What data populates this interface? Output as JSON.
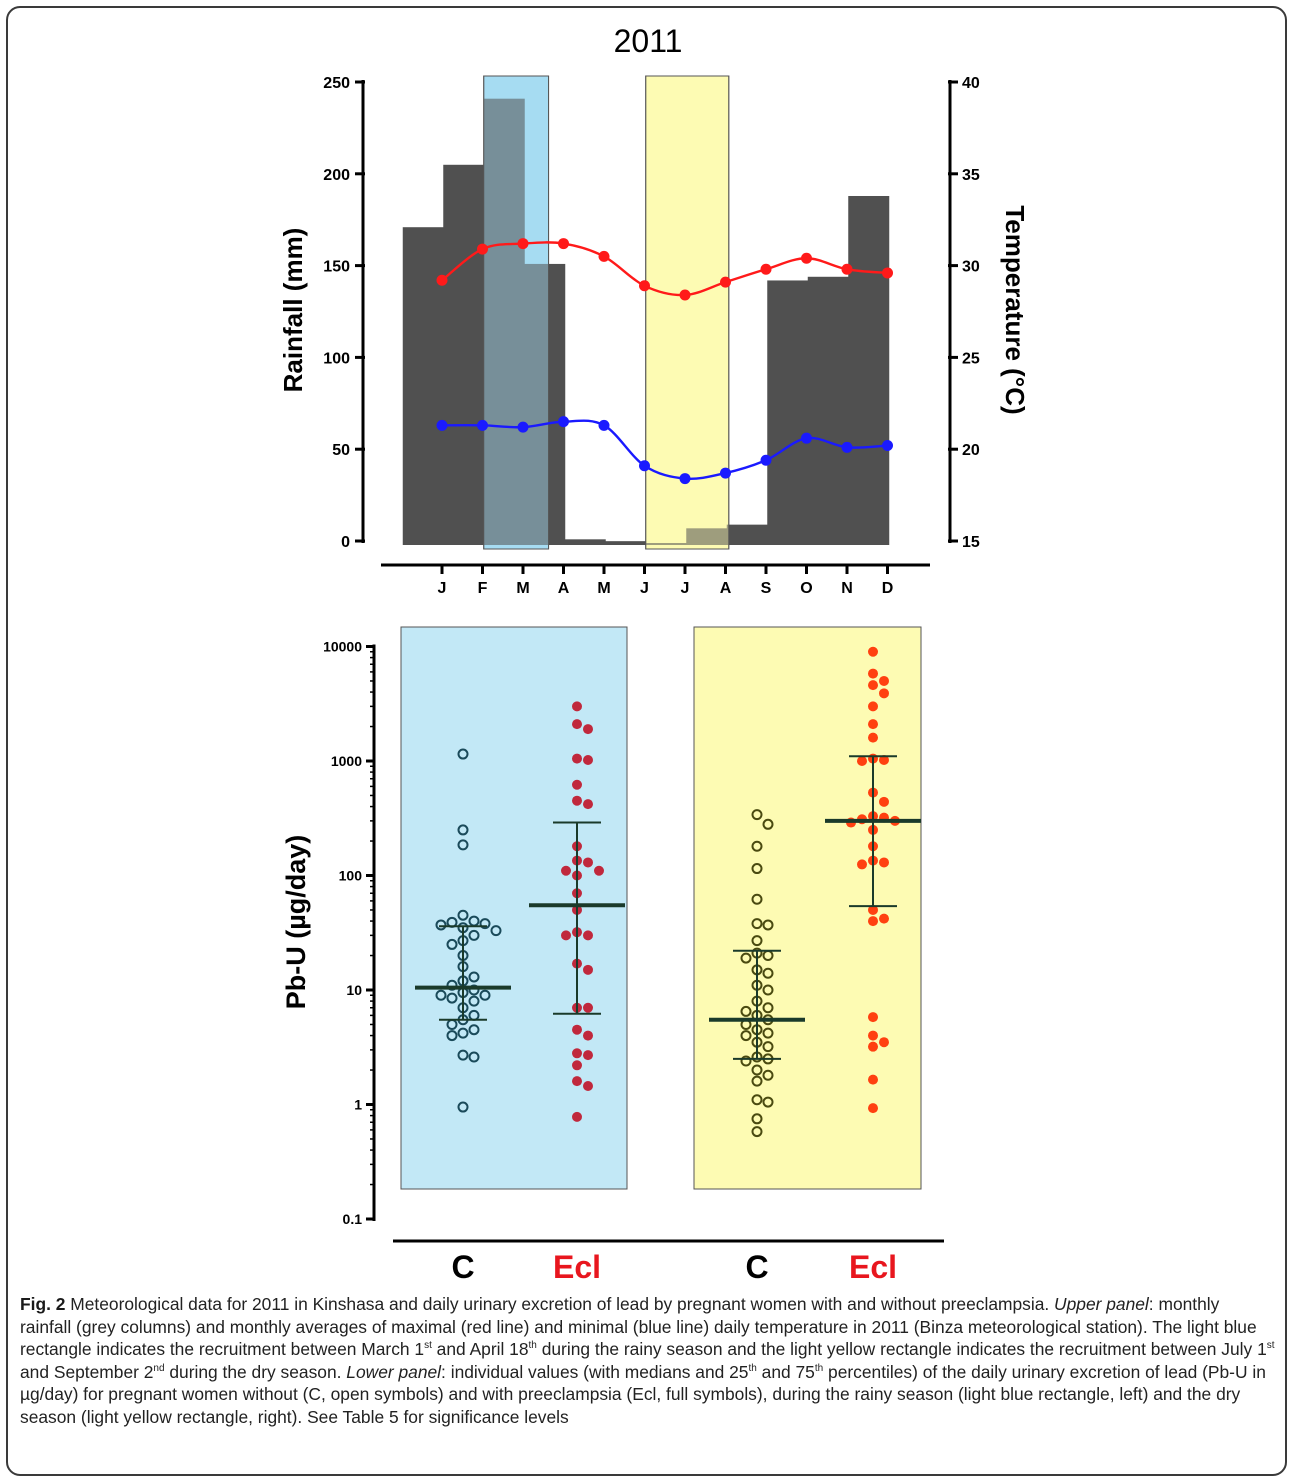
{
  "chart_data": [
    {
      "type": "bar",
      "title": "2011",
      "categories": [
        "J",
        "F",
        "M",
        "A",
        "M",
        "J",
        "J",
        "A",
        "S",
        "O",
        "N",
        "D"
      ],
      "series": [
        {
          "name": "",
          "kind": "bar",
          "axis": "left",
          "values": [
            172,
            206,
            242,
            152,
            2,
            1,
            0,
            8,
            10,
            143,
            145,
            189
          ]
        },
        {
          "name": "",
          "kind": "line",
          "axis": "right",
          "values": [
            29.2,
            30.9,
            31.2,
            31.2,
            30.5,
            28.9,
            28.4,
            29.1,
            29.8,
            30.4,
            29.8,
            29.6
          ]
        },
        {
          "name": "",
          "kind": "line",
          "axis": "right",
          "values": [
            21.3,
            21.3,
            21.2,
            21.5,
            21.3,
            19.1,
            18.4,
            18.7,
            19.4,
            20.6,
            20.1,
            20.2
          ]
        }
      ],
      "ylabel": "Rainfall (mm)",
      "ylim": [
        0,
        250
      ],
      "yticks": [
        "0",
        "50",
        "100",
        "150",
        "200",
        "250"
      ],
      "y2label": "Temperature (°C)",
      "y2lim": [
        15,
        40
      ],
      "y2ticks": [
        "15",
        "20",
        "25",
        "30",
        "35",
        "40"
      ],
      "shaded_regions": [
        {
          "from_month": 3.0,
          "to_month": 4.6,
          "color": "#a6dcf2"
        },
        {
          "from_month": 7.0,
          "to_month": 9.05,
          "color": "#fdfbb3"
        }
      ],
      "colors": {
        "bar": "#505050",
        "tmax": "#ff1a1a",
        "tmin": "#1a1aff"
      },
      "grid": false
    },
    {
      "type": "scatter",
      "ylabel": "Pb-U (µg/day)",
      "yscale": "log",
      "ylim": [
        0.1,
        10000
      ],
      "yticks": [
        "0.1",
        "1",
        "10",
        "100",
        "1000",
        "10000"
      ],
      "categories": [
        "C",
        "Ecl",
        "C",
        "Ecl"
      ],
      "groups": [
        {
          "label": "C",
          "season": "rainy",
          "filled": false,
          "color": "#1a4a5a",
          "median": 10.5,
          "q1": 5.5,
          "q3": 36,
          "values": [
            1150,
            250,
            185,
            45,
            40,
            39,
            38,
            37,
            35,
            33,
            30,
            27,
            25,
            20,
            16,
            13,
            12,
            11,
            10,
            9.5,
            9,
            9,
            8.5,
            8,
            7,
            6,
            5.5,
            5,
            4.5,
            4.2,
            4,
            2.7,
            2.6,
            0.95
          ]
        },
        {
          "label": "Ecl",
          "season": "rainy",
          "filled": true,
          "color": "#c0283c",
          "median": 55,
          "q1": 6.2,
          "q3": 290,
          "values": [
            3000,
            2100,
            1900,
            1050,
            1020,
            620,
            450,
            420,
            180,
            135,
            130,
            110,
            110,
            100,
            70,
            50,
            32,
            30,
            30,
            17,
            15,
            7,
            7,
            4.5,
            4,
            2.8,
            2.7,
            2.2,
            1.6,
            1.45,
            0.78
          ]
        },
        {
          "label": "C",
          "season": "dry",
          "filled": false,
          "color": "#4a4a10",
          "median": 5.5,
          "q1": 2.5,
          "q3": 22,
          "values": [
            340,
            280,
            180,
            115,
            62,
            38,
            37,
            27,
            21,
            20,
            19,
            15,
            14,
            11,
            10,
            8,
            7,
            6.5,
            6,
            5.5,
            5,
            4.5,
            4.2,
            4,
            3.5,
            3.2,
            2.6,
            2.5,
            2.4,
            2.0,
            1.8,
            1.6,
            1.1,
            1.05,
            0.75,
            0.58
          ]
        },
        {
          "label": "Ecl",
          "season": "dry",
          "filled": true,
          "color": "#ff4010",
          "median": 300,
          "q1": 54,
          "q3": 1100,
          "values": [
            9000,
            5800,
            5000,
            4600,
            3900,
            3000,
            2100,
            1600,
            1050,
            1020,
            1000,
            530,
            440,
            330,
            320,
            310,
            300,
            290,
            250,
            180,
            135,
            130,
            125,
            50,
            42,
            40,
            5.8,
            4,
            3.5,
            3.2,
            1.65,
            0.93
          ]
        }
      ],
      "shaded_regions": [
        {
          "groups": [
            0,
            1
          ],
          "color": "#c2e8f6"
        },
        {
          "groups": [
            2,
            3
          ],
          "color": "#fdfbb3"
        }
      ]
    }
  ],
  "caption": {
    "label": "Fig. 2",
    "text1": " Meteorological data for 2011 in Kinshasa and daily urinary excretion of lead by pregnant women with and without preeclampsia. ",
    "upper_label": "Upper panel",
    "text2": ": monthly rainfall (grey columns) and monthly averages of maximal (red line) and minimal (blue line) daily temperature in 2011 (Binza meteorological station). The light blue rectangle indicates the recruitment between March 1",
    "sup1": "st",
    "text3": " and April 18",
    "sup2": "th",
    "text4": " during the rainy season and the light yellow rectangle indicates the recruitment between July 1",
    "sup3": "st",
    "text5": " and September 2",
    "sup4": "nd",
    "text6": " during the dry season. ",
    "lower_label": "Lower panel",
    "text7": ": individual values (with medians and 25",
    "sup5": "th",
    "text8": " and 75",
    "sup6": "th",
    "text9": " percentiles) of the daily urinary excretion of lead (Pb-U in µg/day) for pregnant women without (C, open symbols) and with preeclampsia (Ecl, full symbols), during the rainy season (light blue rectangle, left) and the dry season (light yellow rectangle, right). See Table 5 for significance levels"
  }
}
